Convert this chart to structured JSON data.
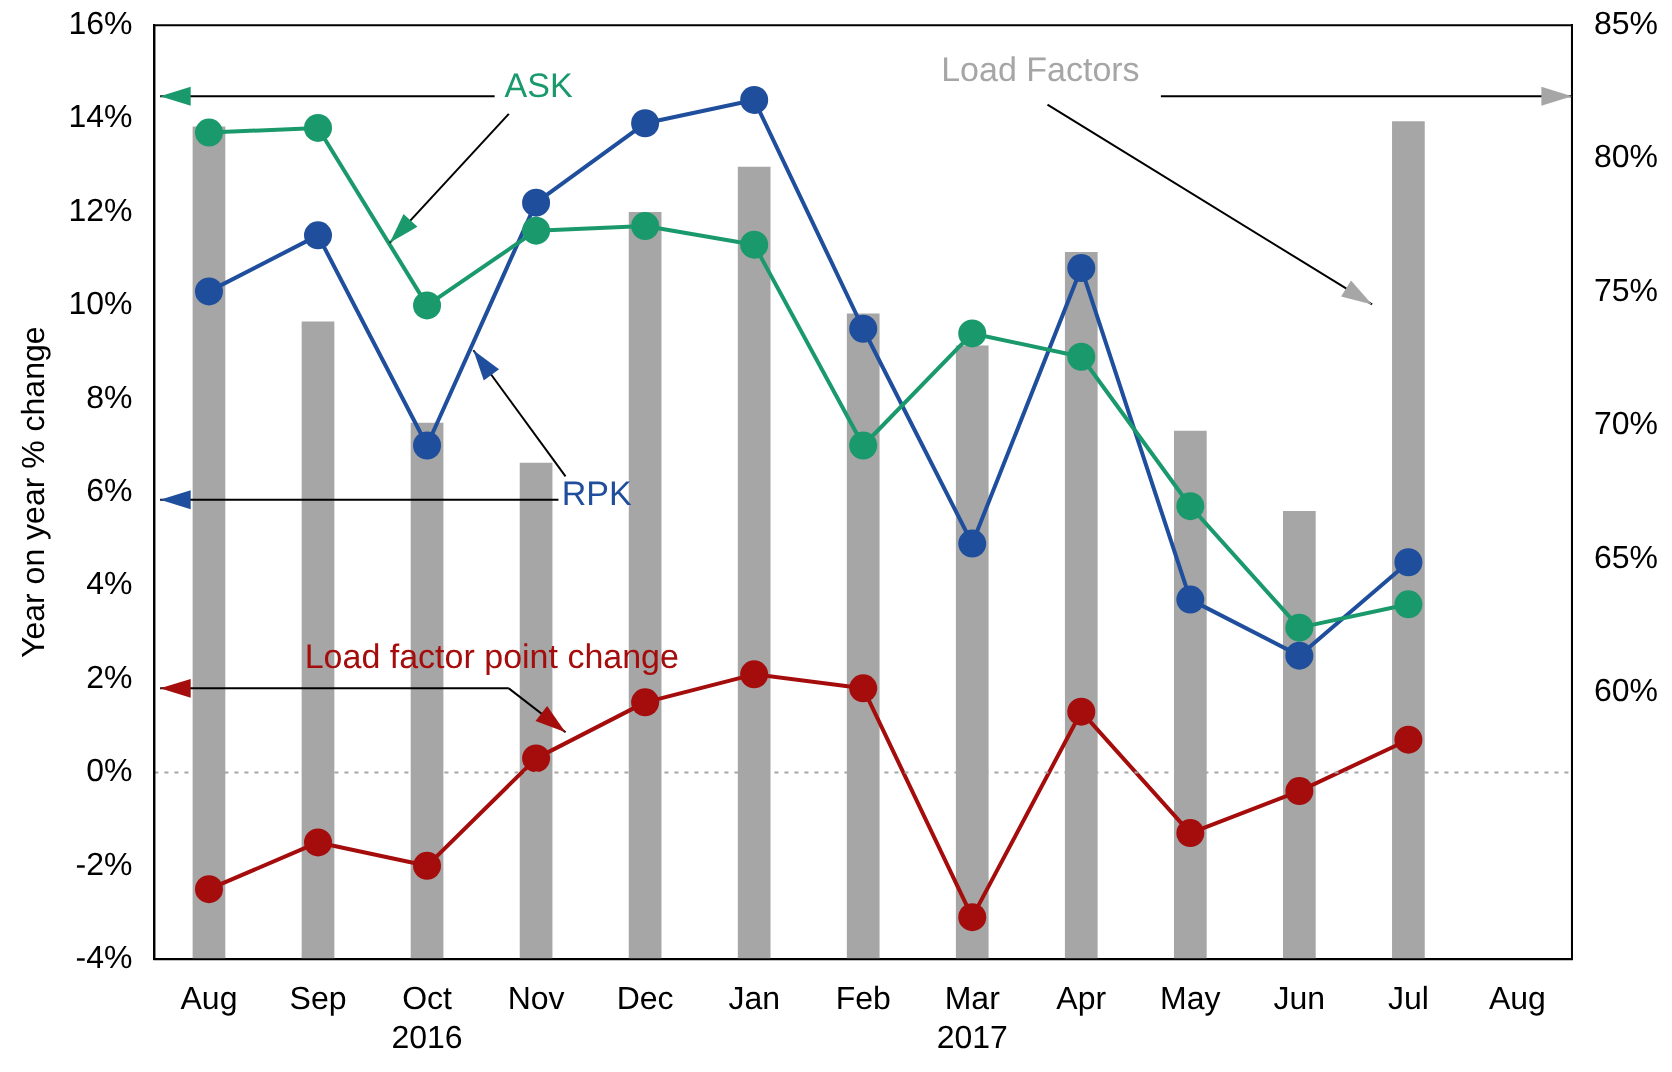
{
  "chart_data": {
    "type": "line",
    "ylabel": "Year on year % change",
    "categories": [
      "Aug",
      "Sep",
      "Oct\n2016",
      "Nov",
      "Dec",
      "Jan",
      "Feb",
      "Mar\n2017",
      "Apr",
      "May",
      "Jun",
      "Jul",
      "Aug"
    ],
    "series": [
      {
        "name": "Load Factors",
        "type": "bar",
        "axis": "y2",
        "color": "#a6a6a6",
        "values": [
          81.2,
          73.9,
          70.1,
          68.6,
          78.0,
          79.7,
          74.2,
          73.0,
          76.5,
          69.8,
          66.8,
          81.4,
          null
        ]
      },
      {
        "name": "ASK",
        "color": "#1a9a6c",
        "values": [
          13.7,
          13.8,
          10.0,
          11.6,
          11.7,
          11.3,
          7.0,
          9.4,
          8.9,
          5.7,
          3.1,
          3.6,
          null
        ]
      },
      {
        "name": "RPK",
        "color": "#1f4e9c",
        "values": [
          10.3,
          11.5,
          7.0,
          12.2,
          13.9,
          14.4,
          9.5,
          4.9,
          10.8,
          3.7,
          2.5,
          4.5,
          null
        ]
      },
      {
        "name": "Load factor point change",
        "color": "#a50d0d",
        "values": [
          -2.5,
          -1.5,
          -2.0,
          0.3,
          1.5,
          2.1,
          1.8,
          -3.1,
          1.3,
          -1.3,
          -0.4,
          0.7,
          null
        ]
      }
    ],
    "ylim": [
      -4,
      16
    ],
    "yticks": [
      {
        "value": -4,
        "label": "-4%"
      },
      {
        "value": -2,
        "label": "-2%"
      },
      {
        "value": 0,
        "label": "0%"
      },
      {
        "value": 2,
        "label": "2%"
      },
      {
        "value": 4,
        "label": "4%"
      },
      {
        "value": 6,
        "label": "6%"
      },
      {
        "value": 8,
        "label": "8%"
      },
      {
        "value": 10,
        "label": "10%"
      },
      {
        "value": 12,
        "label": "12%"
      },
      {
        "value": 14,
        "label": "14%"
      },
      {
        "value": 16,
        "label": "16%"
      }
    ],
    "y2lim": [
      50,
      85
    ],
    "y2ticks": [
      {
        "value": 60,
        "label": "60%"
      },
      {
        "value": 65,
        "label": "65%"
      },
      {
        "value": 70,
        "label": "70%"
      },
      {
        "value": 75,
        "label": "75%"
      },
      {
        "value": 80,
        "label": "80%"
      },
      {
        "value": 85,
        "label": "85%"
      }
    ],
    "ref_lines": [
      {
        "axis": "y",
        "value": 0,
        "color": "#a6a6a6",
        "line_style": "dotted"
      }
    ],
    "grid": false,
    "legend": false,
    "marker": "circle",
    "line_style": "solid"
  }
}
